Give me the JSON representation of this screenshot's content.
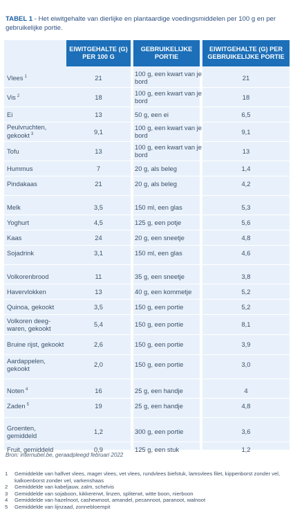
{
  "caption": {
    "label": "TABEL 1",
    "text": " - Het eiwitgehalte van dierlijke en plantaardige voedingsmiddelen per 100 g en per gebruikelijke portie."
  },
  "table": {
    "headers": [
      "",
      "EIWITGEHALTE (G) PER 100 G",
      "GEBRUIKELIJKE PORTIE",
      "EIWITGEHALTE (G) PER GEBRUIKELIJKE PORTIE"
    ],
    "groups": [
      [
        {
          "food": "Vlees",
          "sup": "1",
          "per100": "21",
          "portion": "100 g, een kwart van je bord",
          "perPortion": "21"
        },
        {
          "food": "Vis",
          "sup": "2",
          "per100": "18",
          "portion": "100 g, een kwart van je bord",
          "perPortion": "18"
        },
        {
          "food": "Ei",
          "per100": "13",
          "portion": "50 g, een ei",
          "perPortion": "6,5"
        },
        {
          "food": "Peulvruchten, gekookt",
          "sup": "3",
          "per100": "9,1",
          "portion": "100 g, een kwart van je bord",
          "perPortion": "9,1"
        },
        {
          "food": "Tofu",
          "per100": "13",
          "portion": "100 g, een kwart van je bord",
          "perPortion": "13"
        },
        {
          "food": "Hummus",
          "per100": "7",
          "portion": "20 g, als beleg",
          "perPortion": "1,4"
        },
        {
          "food": "Pindakaas",
          "per100": "21",
          "portion": "20 g, als beleg",
          "perPortion": "4,2"
        }
      ],
      [
        {
          "food": "Melk",
          "per100": "3,5",
          "portion": "150 ml, een glas",
          "perPortion": "5,3"
        },
        {
          "food": "Yoghurt",
          "per100": "4,5",
          "portion": "125 g, een potje",
          "perPortion": "5,6"
        },
        {
          "food": "Kaas",
          "per100": "24",
          "portion": "20 g, een sneetje",
          "perPortion": "4,8"
        },
        {
          "food": "Sojadrink",
          "per100": "3,1",
          "portion": "150 ml, een glas",
          "perPortion": "4,6"
        }
      ],
      [
        {
          "food": "Volkorenbrood",
          "per100": "11",
          "portion": "35 g, een sneetje",
          "perPortion": "3,8"
        },
        {
          "food": "Havervlokken",
          "per100": "13",
          "portion": "40 g, een kommetje",
          "perPortion": "5,2"
        },
        {
          "food": "Quinoa, gekookt",
          "per100": "3,5",
          "portion": "150 g, een portie",
          "perPortion": "5,2"
        },
        {
          "food": "Volkoren deeg-waren, gekookt",
          "per100": "5,4",
          "portion": "150 g, een portie",
          "perPortion": "8,1"
        },
        {
          "food": "Bruine rijst, gekookt",
          "per100": "2,6",
          "portion": "150 g, een portie",
          "perPortion": "3,9"
        },
        {
          "food": "Aardappelen, gekookt",
          "per100": "2,0",
          "portion": "150 g, een portie",
          "perPortion": "3,0"
        }
      ],
      [
        {
          "food": "Noten",
          "sup": "4",
          "per100": "16",
          "portion": "25 g, een handje",
          "perPortion": "4"
        },
        {
          "food": "Zaden",
          "sup": "5",
          "per100": "19",
          "portion": "25 g, een handje",
          "perPortion": "4,8"
        }
      ],
      [
        {
          "food": "Groenten, gemiddeld",
          "per100": "1,2",
          "portion": "300 g, een portie",
          "perPortion": "3,6"
        },
        {
          "food": "Fruit, gemiddeld",
          "per100": "0,9",
          "portion": "125 g, een stuk",
          "perPortion": "1,2"
        }
      ]
    ]
  },
  "source": "Bron: internubel.be, geraadpleegd februari 2022",
  "footnotes": [
    {
      "num": "1",
      "text": "Gemiddelde van halfvet vlees, mager vlees, vet vlees, rundvlees biefstuk, lamsvlees filet, kippenborst zonder vel, kalkoenborst zonder vel, varkenshaas"
    },
    {
      "num": "2",
      "text": "Gemiddelde van kabeljauw, zalm, schelvis"
    },
    {
      "num": "3",
      "text": "Gemiddelde van sojaboon, kikkererwt, linzen, spliterwt, witte boon, nierboon"
    },
    {
      "num": "4",
      "text": "Gemiddelde van hazelnoot, cashewnoot, amandel, pecannoot, paranoot, walnoot"
    },
    {
      "num": "5",
      "text": "Gemiddelde van lijnzaad, zonnebloempit"
    }
  ]
}
